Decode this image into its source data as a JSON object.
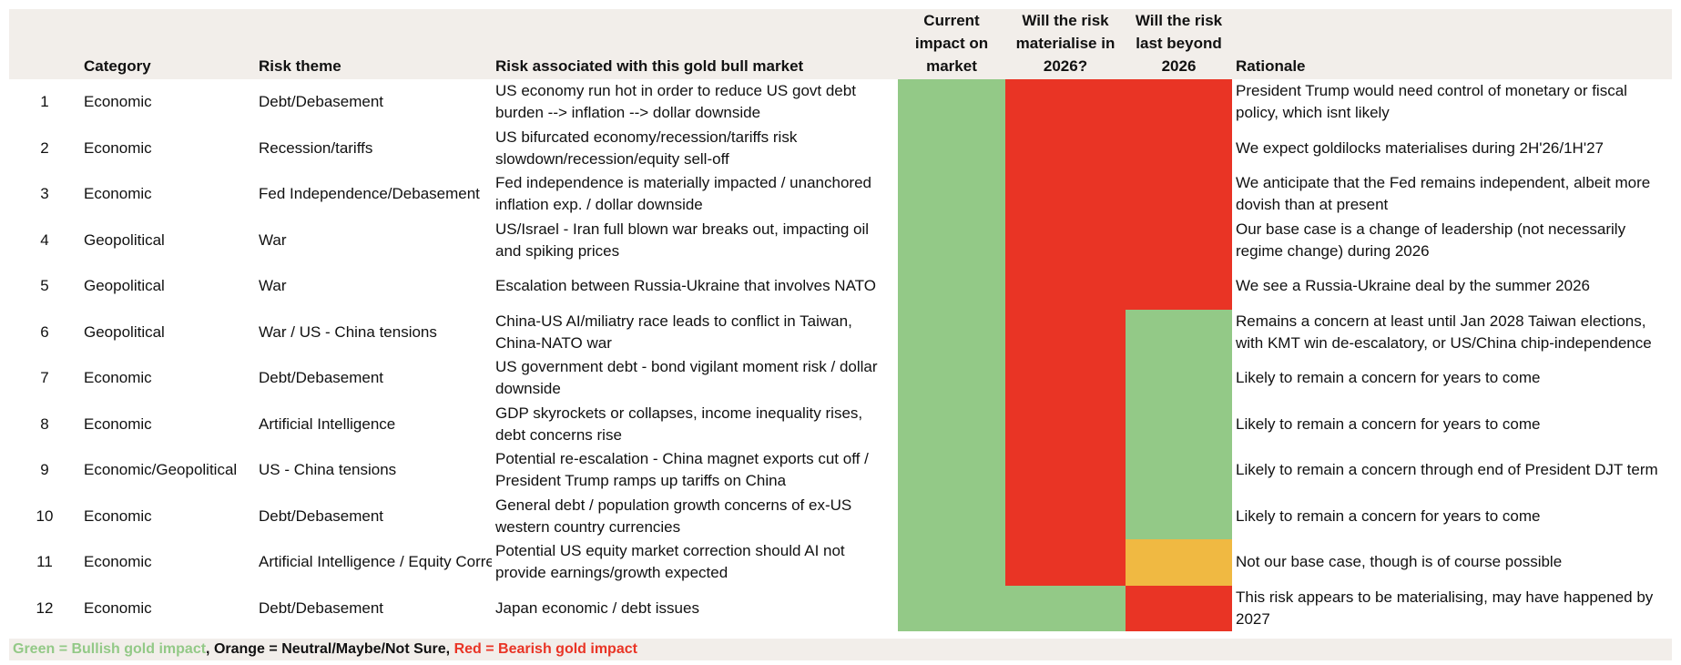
{
  "table": {
    "headers": {
      "number": "",
      "category": "Category",
      "theme": "Risk theme",
      "risk": "Risk associated with this gold bull market",
      "impact": "Current impact on market",
      "materialise": "Will the risk materialise in 2026?",
      "last": "Will the risk last beyond 2026",
      "rationale": "Rationale"
    },
    "rows": [
      {
        "number": "1",
        "category": "Economic",
        "theme": "Debt/Debasement",
        "risk": "US economy run hot in order to reduce US govt debt burden --> inflation --> dollar downside",
        "impact": "green",
        "materialise": "red",
        "last": "red",
        "rationale": "President Trump would need control of monetary or fiscal policy, which isnt likely"
      },
      {
        "number": "2",
        "category": "Economic",
        "theme": "Recession/tariffs",
        "risk": "US bifurcated economy/recession/tariffs risk slowdown/recession/equity sell-off",
        "impact": "green",
        "materialise": "red",
        "last": "red",
        "rationale": "We expect goldilocks materialises during 2H'26/1H'27"
      },
      {
        "number": "3",
        "category": "Economic",
        "theme": "Fed Independence/Debasement",
        "risk": "Fed independence is materially impacted / unanchored inflation exp. / dollar downside",
        "impact": "green",
        "materialise": "red",
        "last": "red",
        "rationale": "We anticipate that the Fed remains independent, albeit more dovish than at present"
      },
      {
        "number": "4",
        "category": "Geopolitical",
        "theme": "War",
        "risk": "US/Israel - Iran full blown war breaks out, impacting oil and spiking prices",
        "impact": "green",
        "materialise": "red",
        "last": "red",
        "rationale": "Our base case is a change of leadership (not necessarily regime change) during 2026"
      },
      {
        "number": "5",
        "category": "Geopolitical",
        "theme": "War",
        "risk": "Escalation between Russia-Ukraine that involves NATO",
        "impact": "green",
        "materialise": "red",
        "last": "red",
        "rationale": "We see a Russia-Ukraine deal by the summer 2026"
      },
      {
        "number": "6",
        "category": "Geopolitical",
        "theme": "War / US - China tensions",
        "risk": "China-US AI/miliatry race leads to conflict in Taiwan, China-NATO war",
        "impact": "green",
        "materialise": "red",
        "last": "green",
        "rationale": "Remains a concern at least until Jan 2028 Taiwan elections, with KMT win de-escalatory, or US/China chip-independence"
      },
      {
        "number": "7",
        "category": "Economic",
        "theme": "Debt/Debasement",
        "risk": "US government debt - bond vigilant moment risk / dollar downside",
        "impact": "green",
        "materialise": "red",
        "last": "green",
        "rationale": "Likely to remain a concern for years to come"
      },
      {
        "number": "8",
        "category": "Economic",
        "theme": "Artificial Intelligence",
        "risk": "GDP skyrockets or collapses, income inequality rises, debt concerns rise",
        "impact": "green",
        "materialise": "red",
        "last": "green",
        "rationale": "Likely to remain a concern for years to come"
      },
      {
        "number": "9",
        "category": "Economic/Geopolitical",
        "theme": "US - China tensions",
        "risk": "Potential re-escalation - China magnet exports cut off / President Trump ramps up tariffs on China",
        "impact": "green",
        "materialise": "red",
        "last": "green",
        "rationale": "Likely to remain a concern through end of President DJT term"
      },
      {
        "number": "10",
        "category": "Economic",
        "theme": "Debt/Debasement",
        "risk": "General debt / population growth concerns of ex-US western country currencies",
        "impact": "green",
        "materialise": "red",
        "last": "green",
        "rationale": "Likely to remain a concern for years to come"
      },
      {
        "number": "11",
        "category": "Economic",
        "theme": "Artificial Intelligence / Equity Correction",
        "risk": "Potential US equity market correction should AI not provide earnings/growth expected",
        "impact": "green",
        "materialise": "red",
        "last": "orange",
        "rationale": "Not our base case, though is of course possible"
      },
      {
        "number": "12",
        "category": "Economic",
        "theme": "Debt/Debasement",
        "risk": "Japan economic / debt issues",
        "impact": "green",
        "materialise": "green",
        "last": "red",
        "rationale": "This risk appears to be materialising, may have happened by 2027"
      }
    ]
  },
  "legend": {
    "green": "Green = Bullish gold impact",
    "orange": ", Orange = Neutral/Maybe/Not Sure, ",
    "red": "Red = Bearish gold impact"
  }
}
